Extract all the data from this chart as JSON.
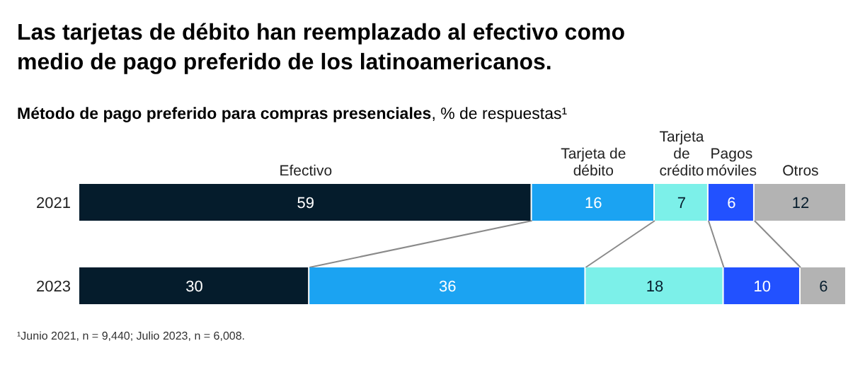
{
  "chart_data": {
    "type": "bar",
    "orientation": "horizontal",
    "stacked": true,
    "data_labels": true,
    "legend": "top",
    "title": "Las tarjetas de débito han reemplazado al efectivo como medio de pago preferido de los latinoamericanos.",
    "subtitle": "Método de pago preferido para compras presenciales, % de respuestas¹",
    "categories": [
      "2021",
      "2023"
    ],
    "series": [
      {
        "name": "Efectivo",
        "color": "#051c2c",
        "values": [
          59,
          30
        ]
      },
      {
        "name": "Tarjeta de débito",
        "color": "#1ba3f2",
        "values": [
          16,
          36
        ]
      },
      {
        "name": "Tarjeta de crédito",
        "color": "#7cf0e9",
        "values": [
          7,
          18
        ]
      },
      {
        "name": "Pagos móviles",
        "color": "#2251ff",
        "values": [
          6,
          10
        ]
      },
      {
        "name": "Otros",
        "color": "#b3b3b3",
        "values": [
          12,
          6
        ]
      }
    ],
    "annotations": [
      "¹Junio 2021, n = 9,440; Julio 2023, n = 6,008."
    ]
  }
}
